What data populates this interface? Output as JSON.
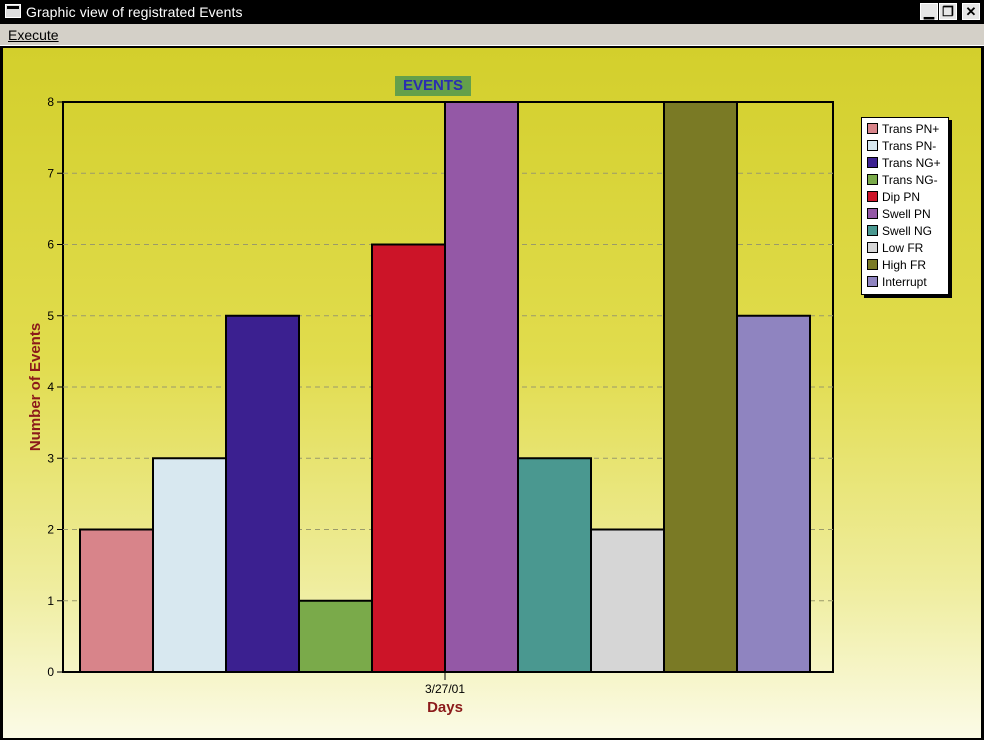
{
  "window": {
    "title": "Graphic view of registrated Events",
    "controls": {
      "minimize": "▁",
      "restore": "❐",
      "close": "✕"
    }
  },
  "menu": {
    "execute": "Execute"
  },
  "chart_data": {
    "type": "bar",
    "title": "EVENTS",
    "xlabel": "Days",
    "ylabel": "Number of Events",
    "categories": [
      "3/27/01"
    ],
    "ylim": [
      0,
      8
    ],
    "yticks": [
      "0",
      "1",
      "2",
      "3",
      "4",
      "5",
      "6",
      "7",
      "8"
    ],
    "grid": true,
    "legend_position": "right",
    "series": [
      {
        "name": "Trans PN+",
        "values": [
          2
        ],
        "color": "#d8848a"
      },
      {
        "name": "Trans PN-",
        "values": [
          3
        ],
        "color": "#d8e8f0"
      },
      {
        "name": "Trans NG+",
        "values": [
          5
        ],
        "color": "#3b2090"
      },
      {
        "name": "Trans NG-",
        "values": [
          1
        ],
        "color": "#7aaa4a"
      },
      {
        "name": "Dip PN",
        "values": [
          6
        ],
        "color": "#cc1428"
      },
      {
        "name": "Swell PN",
        "values": [
          8
        ],
        "color": "#9458a6"
      },
      {
        "name": "Swell NG",
        "values": [
          3
        ],
        "color": "#4a9890"
      },
      {
        "name": "Low FR",
        "values": [
          2
        ],
        "color": "#d6d6d6"
      },
      {
        "name": "High FR",
        "values": [
          8
        ],
        "color": "#7a7a25"
      },
      {
        "name": "Interrupt",
        "values": [
          5
        ],
        "color": "#8f84c0"
      }
    ]
  }
}
